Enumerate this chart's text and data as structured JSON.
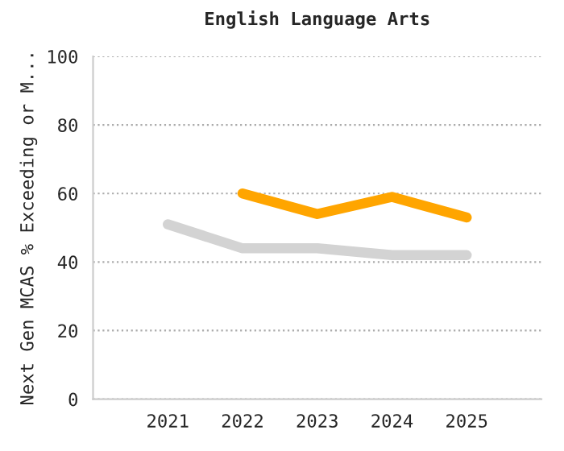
{
  "chart_data": {
    "type": "line",
    "title": "English Language Arts",
    "ylabel": "Next Gen MCAS % Exceeding or M...",
    "categories": [
      "2021",
      "2022",
      "2023",
      "2024",
      "2025"
    ],
    "series": [
      {
        "color": "#d3d3d3",
        "values": [
          51,
          44,
          44,
          42,
          42
        ]
      },
      {
        "color": "#ffa500",
        "values": [
          null,
          60,
          54,
          59,
          53
        ]
      }
    ],
    "ylim": [
      0,
      100
    ],
    "yticks": [
      0,
      20,
      40,
      60,
      80,
      100
    ],
    "grid": "y",
    "legend": false,
    "marker": "none",
    "line_style": "solid"
  }
}
